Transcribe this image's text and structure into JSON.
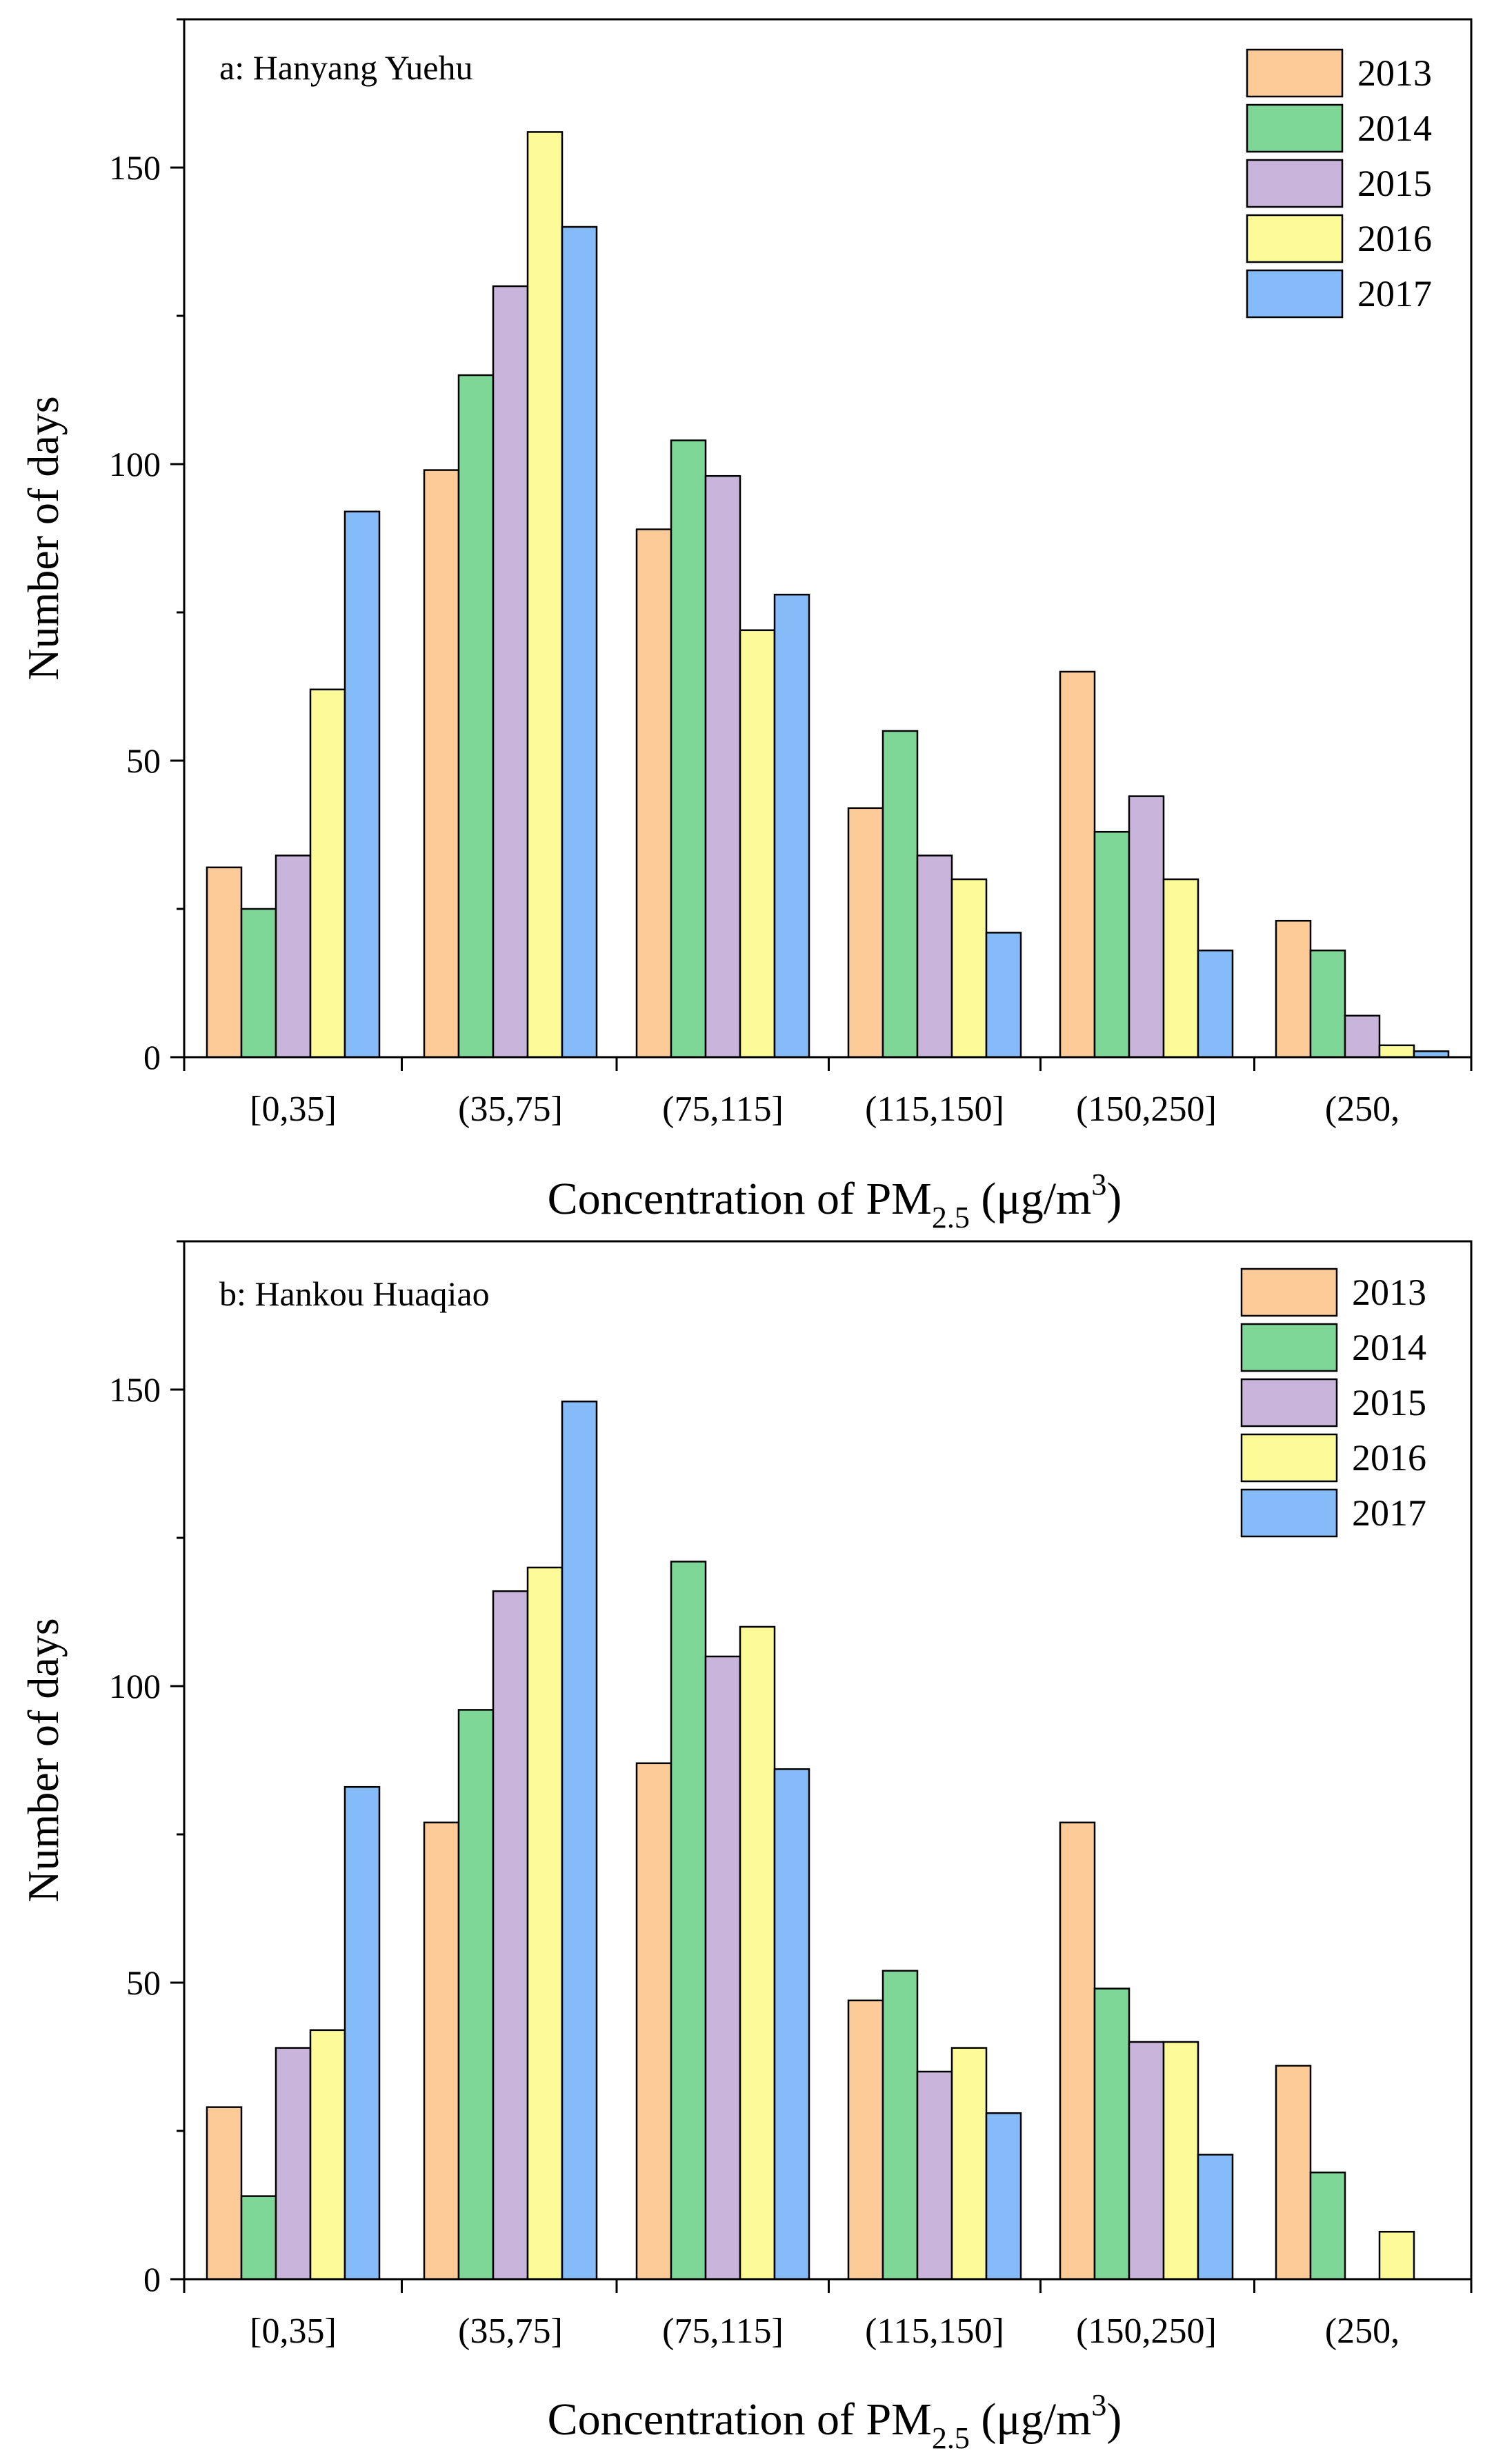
{
  "chart_data": [
    {
      "type": "bar",
      "title": "a: Hanyang Yuehu",
      "xlabel": "Concentration of PM",
      "xlabel_sub": "2.5",
      "xlabel_unit": " (μg/m",
      "xlabel_sup": "3",
      "xlabel_close": ")",
      "ylabel": "Number of days",
      "ylim": [
        0,
        175
      ],
      "yticks": [
        0,
        50,
        100,
        150
      ],
      "categories": [
        "[0,35]",
        "(35,75]",
        "(75,115]",
        "(115,150]",
        "(150,250]",
        "(250,"
      ],
      "legend_position": "top-right",
      "series": [
        {
          "name": "2013",
          "color": "#FDCB97",
          "values": [
            32,
            99,
            89,
            42,
            65,
            23
          ]
        },
        {
          "name": "2014",
          "color": "#7ED796",
          "values": [
            25,
            115,
            104,
            55,
            38,
            18
          ]
        },
        {
          "name": "2015",
          "color": "#C9B5DB",
          "values": [
            34,
            130,
            98,
            34,
            44,
            7
          ]
        },
        {
          "name": "2016",
          "color": "#FDFB98",
          "values": [
            62,
            156,
            72,
            30,
            30,
            2
          ]
        },
        {
          "name": "2017",
          "color": "#86BBF9",
          "values": [
            92,
            140,
            78,
            21,
            18,
            1
          ]
        }
      ]
    },
    {
      "type": "bar",
      "title": "b: Hankou Huaqiao",
      "xlabel": "Concentration of PM",
      "xlabel_sub": "2.5",
      "xlabel_unit": " (μg/m",
      "xlabel_sup": "3",
      "xlabel_close": ")",
      "ylabel": "Number of days",
      "ylim": [
        0,
        175
      ],
      "yticks": [
        0,
        50,
        100,
        150
      ],
      "categories": [
        "[0,35]",
        "(35,75]",
        "(75,115]",
        "(115,150]",
        "(150,250]",
        "(250,"
      ],
      "legend_position": "top-right",
      "series": [
        {
          "name": "2013",
          "color": "#FDCB97",
          "values": [
            29,
            77,
            87,
            47,
            77,
            36
          ]
        },
        {
          "name": "2014",
          "color": "#7ED796",
          "values": [
            14,
            96,
            121,
            52,
            49,
            18
          ]
        },
        {
          "name": "2015",
          "color": "#C9B5DB",
          "values": [
            39,
            116,
            105,
            35,
            40,
            0
          ]
        },
        {
          "name": "2016",
          "color": "#FDFB98",
          "values": [
            42,
            120,
            110,
            39,
            40,
            8
          ]
        },
        {
          "name": "2017",
          "color": "#86BBF9",
          "values": [
            83,
            148,
            86,
            28,
            21,
            0
          ]
        }
      ]
    }
  ]
}
